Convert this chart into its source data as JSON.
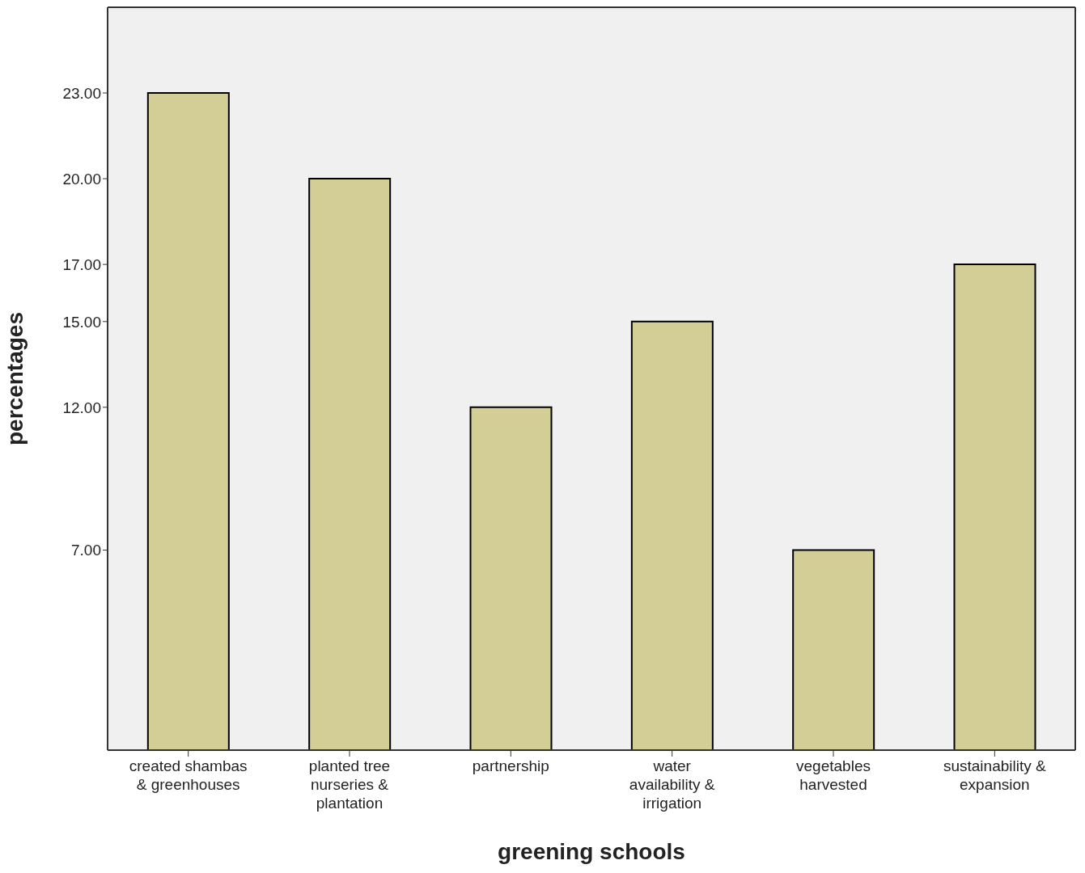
{
  "chart_data": {
    "type": "bar",
    "xlabel": "greening schools",
    "ylabel": "percentages",
    "categories": [
      "created shambas & greenhouses",
      "planted tree nurseries & plantation",
      "partnership",
      "water availability & irrigation",
      "vegetables harvested",
      "sustainability & expansion"
    ],
    "values": [
      23,
      20,
      12,
      15,
      7,
      17
    ],
    "color": "#d3ce96",
    "ylim": [
      0,
      26
    ],
    "yticks": [
      {
        "value": 7,
        "label": "7.00"
      },
      {
        "value": 12,
        "label": "12.00"
      },
      {
        "value": 15,
        "label": "15.00"
      },
      {
        "value": 17,
        "label": "17.00"
      },
      {
        "value": 20,
        "label": "20.00"
      },
      {
        "value": 23,
        "label": "23.00"
      }
    ],
    "grid": false,
    "legend": false
  }
}
